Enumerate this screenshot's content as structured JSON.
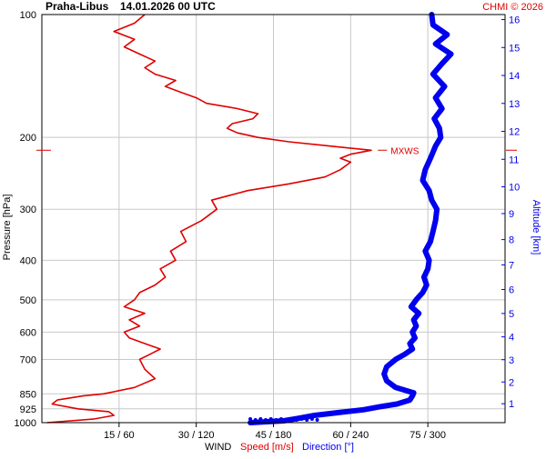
{
  "header": {
    "station": "Praha-Libus",
    "datetime": "14.01.2026 00 UTC",
    "credit": "CHMI © 2026"
  },
  "footer": {
    "wind_label": "WIND",
    "speed_label": "Speed [m/s]",
    "direction_label": "Direction [°]"
  },
  "colors": {
    "speed": "#e00000",
    "direction": "#0000ee",
    "grid": "#c8c8c8"
  },
  "chart_data": {
    "type": "line",
    "y_axis_left": {
      "label": "Pressure [hPa]",
      "scale": "log",
      "range": [
        1000,
        100
      ],
      "ticks": [
        "100",
        "200",
        "300",
        "400",
        "500",
        "600",
        "700",
        "850",
        "925",
        "1000"
      ]
    },
    "y_axis_right": {
      "label": "Altitude [km]",
      "ticks": [
        "1",
        "2",
        "3",
        "4",
        "5",
        "6",
        "7",
        "8",
        "9",
        "10",
        "11",
        "12",
        "13",
        "14",
        "15",
        "16"
      ]
    },
    "x_axis": {
      "label": "WIND",
      "speed_range": [
        0,
        90
      ],
      "direction_range": [
        0,
        360
      ],
      "tick_labels": [
        "15 / 60",
        "30 / 120",
        "45 / 180",
        "60 / 240",
        "75 / 300"
      ]
    },
    "annotation": {
      "text": "MXWS",
      "pressure": 215,
      "speed": 66
    },
    "series": [
      {
        "name": "Speed [m/s]",
        "pressure": [
          1000,
          980,
          960,
          940,
          925,
          900,
          880,
          860,
          850,
          820,
          780,
          740,
          700,
          680,
          660,
          640,
          620,
          600,
          580,
          560,
          540,
          520,
          500,
          480,
          460,
          440,
          420,
          400,
          380,
          360,
          340,
          320,
          300,
          285,
          270,
          260,
          250,
          240,
          230,
          225,
          220,
          215,
          210,
          205,
          200,
          195,
          190,
          185,
          180,
          175,
          170,
          165,
          160,
          155,
          150,
          145,
          140,
          135,
          130,
          125,
          120,
          115,
          110,
          105,
          100
        ],
        "values": [
          1,
          10,
          14,
          13,
          7,
          2,
          3,
          8,
          12,
          18,
          22,
          20,
          19,
          21,
          23,
          20,
          17,
          16,
          19,
          17,
          20,
          16,
          18,
          19,
          22,
          24,
          23,
          26,
          25,
          28,
          27,
          31,
          34,
          33,
          40,
          48,
          55,
          58,
          60,
          58,
          60,
          64,
          56,
          48,
          42,
          38,
          36,
          37,
          41,
          42,
          38,
          32,
          30,
          27,
          24,
          26,
          22,
          20,
          22,
          19,
          16,
          18,
          14,
          18,
          20
        ]
      },
      {
        "name": "Direction [°]",
        "pressure": [
          1000,
          990,
          975,
          960,
          945,
          930,
          915,
          900,
          880,
          860,
          845,
          820,
          790,
          760,
          730,
          700,
          680,
          660,
          640,
          620,
          600,
          580,
          560,
          540,
          520,
          500,
          480,
          460,
          440,
          420,
          400,
          380,
          360,
          340,
          320,
          300,
          285,
          270,
          255,
          240,
          225,
          210,
          200,
          190,
          180,
          170,
          160,
          150,
          140,
          132,
          125,
          118,
          112,
          106,
          100
        ],
        "values": [
          162,
          188,
          200,
          212,
          230,
          250,
          262,
          276,
          286,
          288,
          289,
          275,
          268,
          266,
          268,
          275,
          282,
          288,
          286,
          290,
          288,
          291,
          289,
          293,
          287,
          291,
          296,
          299,
          297,
          300,
          301,
          298,
          302,
          304,
          306,
          307,
          303,
          301,
          296,
          298,
          302,
          306,
          310,
          309,
          305,
          311,
          306,
          313,
          304,
          311,
          318,
          306,
          315,
          304,
          303
        ]
      }
    ]
  }
}
